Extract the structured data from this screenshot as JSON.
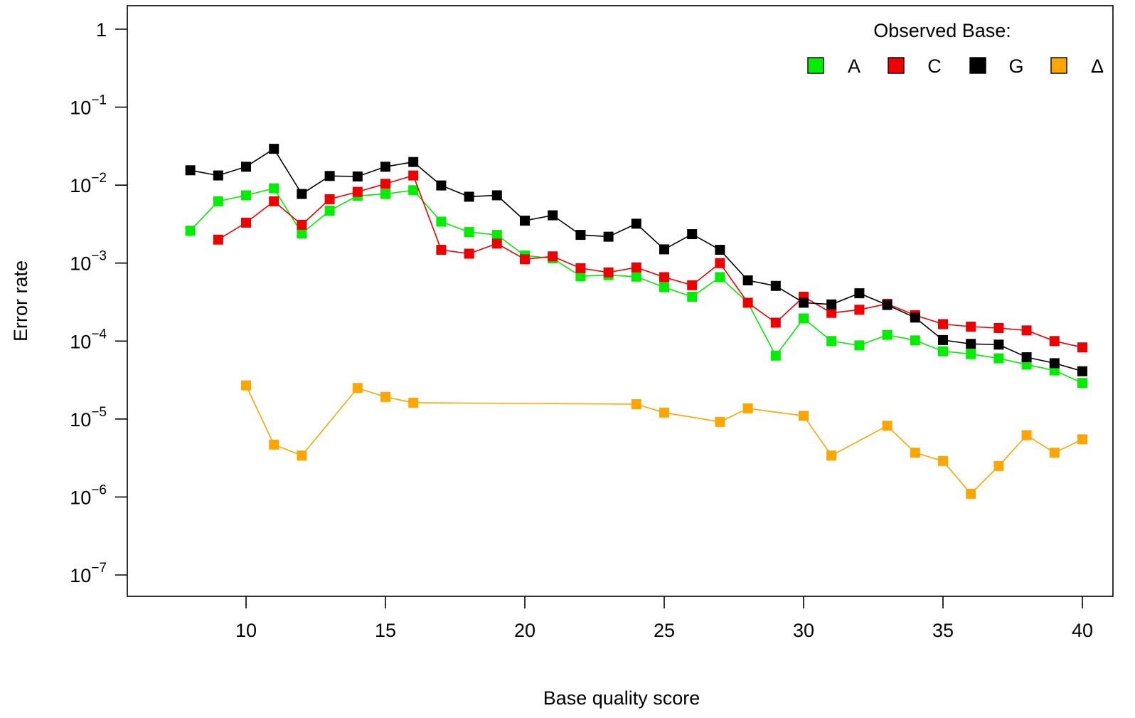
{
  "chart_data": {
    "type": "line",
    "xlabel": "Base quality score",
    "ylabel": "Error rate",
    "xlim": [
      6.5,
      41
    ],
    "ylim": [
      5e-08,
      2
    ],
    "y_scale": "log",
    "x_ticks": [
      10,
      15,
      20,
      25,
      30,
      35,
      40
    ],
    "x_tick_labels": [
      "10",
      "15",
      "20",
      "25",
      "30",
      "35",
      "40"
    ],
    "y_ticks": [
      1,
      0.1,
      0.01,
      0.001,
      0.0001,
      1e-05,
      1e-06,
      1e-07
    ],
    "y_tick_labels": [
      {
        "base": "1",
        "exp": ""
      },
      {
        "base": "10",
        "exp": "−1"
      },
      {
        "base": "10",
        "exp": "−2"
      },
      {
        "base": "10",
        "exp": "−3"
      },
      {
        "base": "10",
        "exp": "−4"
      },
      {
        "base": "10",
        "exp": "−5"
      },
      {
        "base": "10",
        "exp": "−6"
      },
      {
        "base": "10",
        "exp": "−7"
      }
    ],
    "legend": {
      "title": "Observed Base:",
      "position": "top-right"
    },
    "series": [
      {
        "name": "A",
        "color": "#00ee00",
        "x": [
          8,
          9,
          10,
          11,
          12,
          13,
          14,
          15,
          16,
          17,
          18,
          19,
          20,
          21,
          22,
          23,
          24,
          25,
          26,
          27,
          28,
          29,
          30,
          31,
          32,
          33,
          34,
          35,
          36,
          37,
          38,
          39,
          40
        ],
        "y": [
          0.0026,
          0.0062,
          0.0074,
          0.0091,
          0.0024,
          0.0047,
          0.0073,
          0.0077,
          0.0086,
          0.0034,
          0.0025,
          0.0023,
          0.00125,
          0.00115,
          0.00068,
          0.0007,
          0.00067,
          0.00049,
          0.00037,
          0.00066,
          0.00031,
          6.5e-05,
          0.000195,
          0.0001,
          8.8e-05,
          0.00012,
          0.000102,
          7.4e-05,
          6.8e-05,
          6e-05,
          5e-05,
          4.2e-05,
          2.9e-05
        ]
      },
      {
        "name": "C",
        "color": "#ee0000",
        "x": [
          9,
          10,
          11,
          12,
          13,
          14,
          15,
          16,
          17,
          18,
          19,
          20,
          21,
          22,
          23,
          24,
          25,
          26,
          27,
          28,
          29,
          30,
          31,
          32,
          33,
          34,
          35,
          36,
          37,
          38,
          39,
          40
        ],
        "y": [
          0.002,
          0.0033,
          0.0062,
          0.0031,
          0.0066,
          0.0082,
          0.0104,
          0.0133,
          0.00148,
          0.00132,
          0.00178,
          0.00112,
          0.00122,
          0.00086,
          0.00076,
          0.00088,
          0.00066,
          0.00052,
          0.001,
          0.00031,
          0.000172,
          0.00037,
          0.00023,
          0.000252,
          0.0003,
          0.000215,
          0.000165,
          0.000153,
          0.000147,
          0.000137,
          0.0001,
          8.3e-05
        ]
      },
      {
        "name": "G",
        "color": "#000000",
        "x": [
          8,
          9,
          10,
          11,
          12,
          13,
          14,
          15,
          16,
          17,
          18,
          19,
          20,
          21,
          22,
          23,
          24,
          25,
          26,
          27,
          28,
          29,
          30,
          31,
          32,
          33,
          34,
          35,
          36,
          37,
          38,
          39,
          40
        ],
        "y": [
          0.0155,
          0.0133,
          0.0172,
          0.0292,
          0.0077,
          0.0131,
          0.0129,
          0.0172,
          0.0198,
          0.0099,
          0.0071,
          0.0074,
          0.0035,
          0.0041,
          0.0023,
          0.00218,
          0.0032,
          0.0015,
          0.00235,
          0.00148,
          0.0006,
          0.00051,
          0.00031,
          0.000295,
          0.00041,
          0.00029,
          0.0002,
          0.000103,
          9.2e-05,
          9e-05,
          6.2e-05,
          5.2e-05,
          4.1e-05
        ]
      },
      {
        "name": "Δ",
        "color": "#ffa500",
        "x": [
          10,
          11,
          12,
          14,
          15,
          16,
          24,
          25,
          27,
          28,
          30,
          31,
          33,
          34,
          35,
          36,
          37,
          38,
          39,
          40
        ],
        "y": [
          2.7e-05,
          4.7e-06,
          3.4e-06,
          2.5e-05,
          1.92e-05,
          1.62e-05,
          1.55e-05,
          1.21e-05,
          9.2e-06,
          1.37e-05,
          1.1e-05,
          3.4e-06,
          8.2e-06,
          3.7e-06,
          2.9e-06,
          1.1e-06,
          2.5e-06,
          6.2e-06,
          3.7e-06,
          5.5e-06
        ]
      }
    ]
  }
}
